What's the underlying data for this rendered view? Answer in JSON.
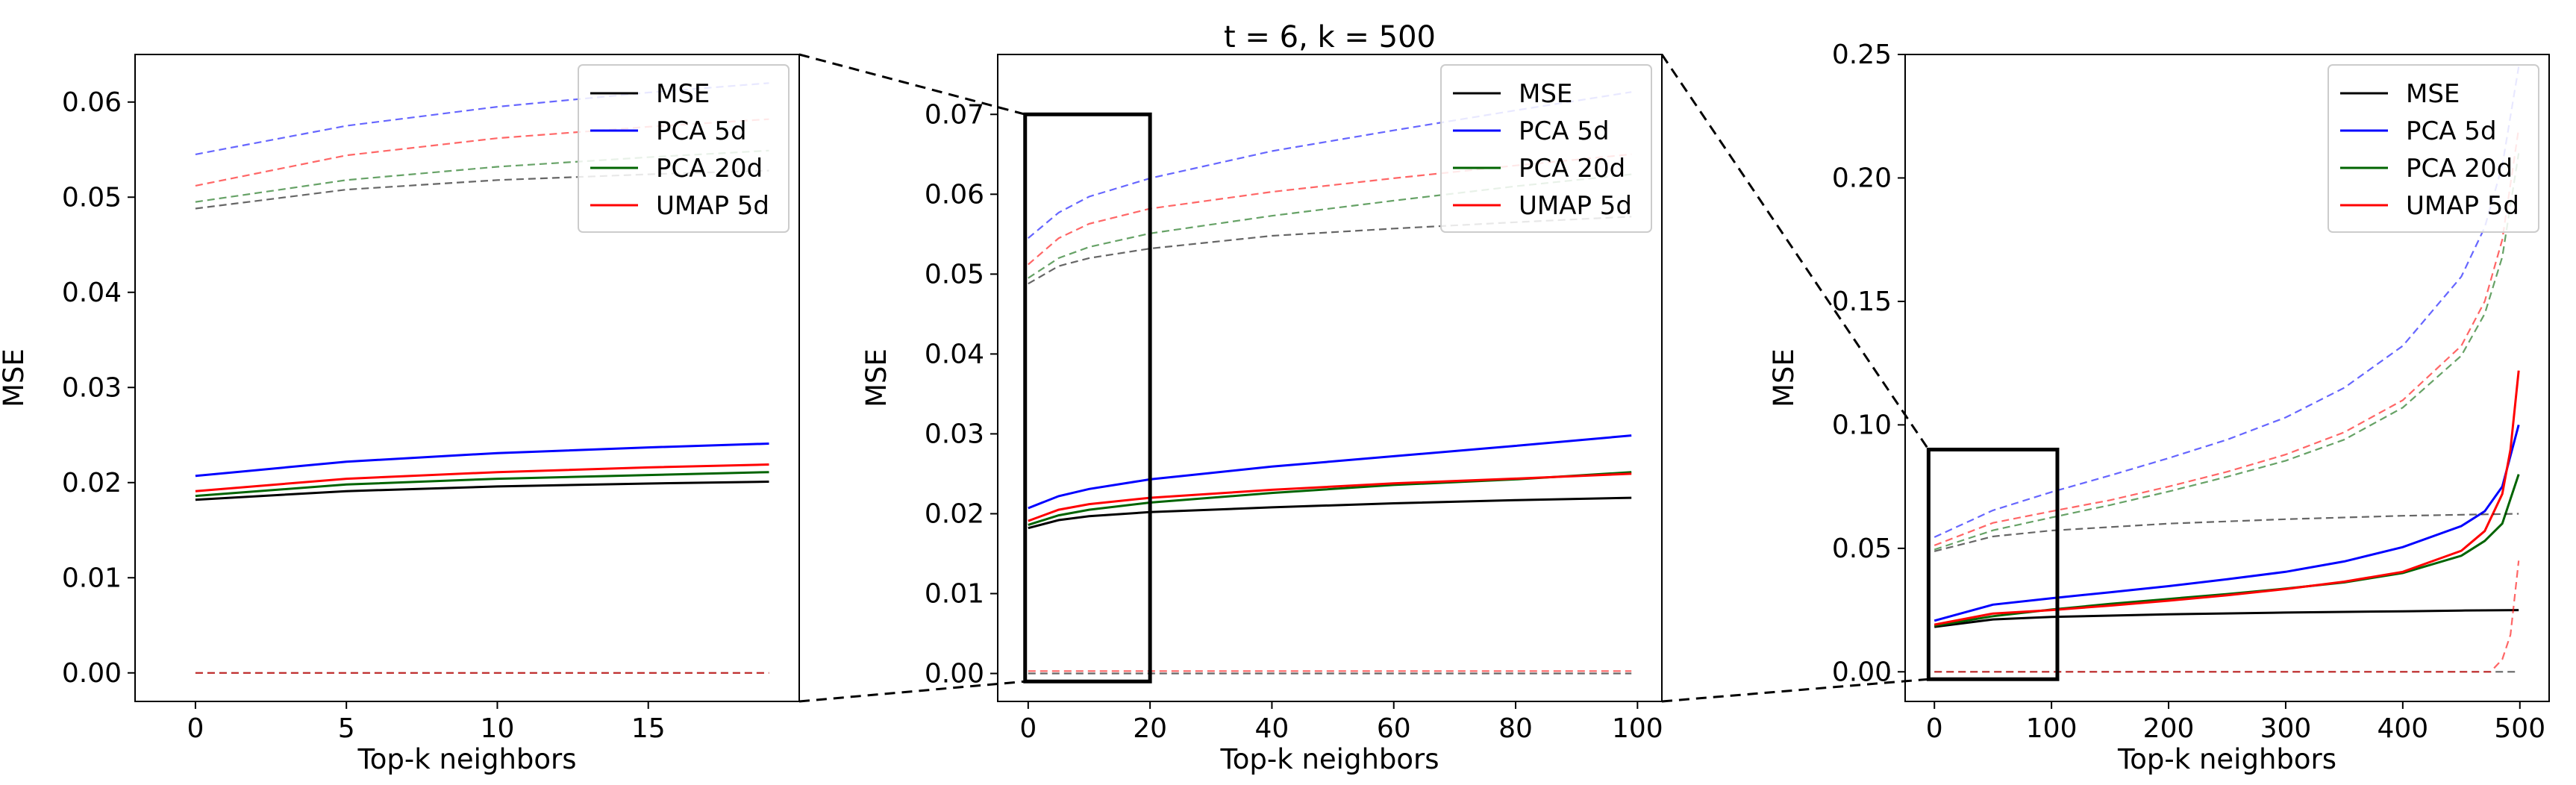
{
  "colors": {
    "MSE": "#000000",
    "PCA 5d": "#0000ff",
    "PCA 20d": "#006400",
    "UMAP 5d": "#ff0000",
    "background": "#ffffff"
  },
  "chart_data": [
    {
      "type": "line",
      "panel": "left",
      "title": "",
      "xlabel": "Top-k neighbors",
      "ylabel": "MSE",
      "xlim": [
        -2,
        20
      ],
      "ylim": [
        -0.003,
        0.065
      ],
      "xticks": [
        0,
        5,
        10,
        15
      ],
      "xtick_labels": [
        "0",
        "5",
        "10",
        "15"
      ],
      "yticks": [
        0.0,
        0.01,
        0.02,
        0.03,
        0.04,
        0.05,
        0.06
      ],
      "ytick_labels": [
        "0.00",
        "0.01",
        "0.02",
        "0.03",
        "0.04",
        "0.05",
        "0.06"
      ],
      "legend": [
        "MSE",
        "PCA 5d",
        "PCA 20d",
        "UMAP 5d"
      ],
      "legend_position": "top-right",
      "series": [
        {
          "name": "MSE",
          "style": "solid",
          "x": [
            0,
            5,
            10,
            15,
            19
          ],
          "values": [
            0.0182,
            0.0191,
            0.0196,
            0.0199,
            0.0201
          ]
        },
        {
          "name": "PCA 5d",
          "style": "solid",
          "x": [
            0,
            5,
            10,
            15,
            19
          ],
          "values": [
            0.0207,
            0.0222,
            0.0231,
            0.0237,
            0.0241
          ]
        },
        {
          "name": "PCA 20d",
          "style": "solid",
          "x": [
            0,
            5,
            10,
            15,
            19
          ],
          "values": [
            0.0186,
            0.0198,
            0.0204,
            0.0208,
            0.0211
          ]
        },
        {
          "name": "UMAP 5d",
          "style": "solid",
          "x": [
            0,
            5,
            10,
            15,
            19
          ],
          "values": [
            0.0191,
            0.0204,
            0.0211,
            0.0216,
            0.0219
          ]
        },
        {
          "name": "MSE",
          "style": "dashed",
          "x": [
            0,
            5,
            10,
            15,
            19
          ],
          "values": [
            0.0488,
            0.0508,
            0.0518,
            0.0524,
            0.0528
          ]
        },
        {
          "name": "PCA 5d",
          "style": "dashed",
          "x": [
            0,
            5,
            10,
            15,
            19
          ],
          "values": [
            0.0545,
            0.0575,
            0.0595,
            0.061,
            0.062
          ]
        },
        {
          "name": "PCA 20d",
          "style": "dashed",
          "x": [
            0,
            5,
            10,
            15,
            19
          ],
          "values": [
            0.0495,
            0.0518,
            0.0532,
            0.0542,
            0.0549
          ]
        },
        {
          "name": "UMAP 5d",
          "style": "dashed",
          "x": [
            0,
            5,
            10,
            15,
            19
          ],
          "values": [
            0.0512,
            0.0544,
            0.0562,
            0.0574,
            0.0582
          ]
        },
        {
          "name": "MSE",
          "style": "dashed",
          "x": [
            0,
            19
          ],
          "values": [
            0.0,
            0.0
          ]
        },
        {
          "name": "UMAP 5d",
          "style": "dashed",
          "x": [
            0,
            19
          ],
          "values": [
            0.0,
            0.0
          ]
        }
      ]
    },
    {
      "type": "line",
      "panel": "middle",
      "title": "t = 6, k = 500",
      "xlabel": "Top-k neighbors",
      "ylabel": "MSE",
      "xlim": [
        -5,
        104
      ],
      "ylim": [
        -0.0035,
        0.0775
      ],
      "xticks": [
        0,
        20,
        40,
        60,
        80,
        100
      ],
      "xtick_labels": [
        "0",
        "20",
        "40",
        "60",
        "80",
        "100"
      ],
      "yticks": [
        0.0,
        0.01,
        0.02,
        0.03,
        0.04,
        0.05,
        0.06,
        0.07
      ],
      "ytick_labels": [
        "0.00",
        "0.01",
        "0.02",
        "0.03",
        "0.04",
        "0.05",
        "0.06",
        "0.07"
      ],
      "legend": [
        "MSE",
        "PCA 5d",
        "PCA 20d",
        "UMAP 5d"
      ],
      "legend_position": "top-right",
      "series": [
        {
          "name": "MSE",
          "style": "solid",
          "x": [
            0,
            5,
            10,
            20,
            40,
            60,
            80,
            99
          ],
          "values": [
            0.0182,
            0.0192,
            0.0197,
            0.0202,
            0.0208,
            0.0213,
            0.0217,
            0.022
          ]
        },
        {
          "name": "PCA 5d",
          "style": "solid",
          "x": [
            0,
            5,
            10,
            20,
            40,
            60,
            80,
            99
          ],
          "values": [
            0.0207,
            0.0222,
            0.0231,
            0.0243,
            0.0259,
            0.0272,
            0.0285,
            0.0298
          ]
        },
        {
          "name": "PCA 20d",
          "style": "solid",
          "x": [
            0,
            5,
            10,
            20,
            40,
            60,
            80,
            99
          ],
          "values": [
            0.0186,
            0.0198,
            0.0205,
            0.0214,
            0.0226,
            0.0236,
            0.0243,
            0.0252
          ]
        },
        {
          "name": "UMAP 5d",
          "style": "solid",
          "x": [
            0,
            5,
            10,
            20,
            40,
            60,
            80,
            99
          ],
          "values": [
            0.0191,
            0.0205,
            0.0212,
            0.022,
            0.023,
            0.0238,
            0.0244,
            0.025
          ]
        },
        {
          "name": "MSE",
          "style": "dashed",
          "x": [
            0,
            5,
            10,
            20,
            40,
            60,
            80,
            99
          ],
          "values": [
            0.0488,
            0.051,
            0.052,
            0.0532,
            0.0548,
            0.0557,
            0.0565,
            0.0572
          ]
        },
        {
          "name": "PCA 5d",
          "style": "dashed",
          "x": [
            0,
            5,
            10,
            20,
            40,
            60,
            80,
            99
          ],
          "values": [
            0.0545,
            0.0577,
            0.0597,
            0.062,
            0.0654,
            0.068,
            0.0705,
            0.0728
          ]
        },
        {
          "name": "PCA 20d",
          "style": "dashed",
          "x": [
            0,
            5,
            10,
            20,
            40,
            60,
            80,
            99
          ],
          "values": [
            0.0495,
            0.052,
            0.0534,
            0.0551,
            0.0573,
            0.0592,
            0.061,
            0.0625
          ]
        },
        {
          "name": "UMAP 5d",
          "style": "dashed",
          "x": [
            0,
            5,
            10,
            20,
            40,
            60,
            80,
            99
          ],
          "values": [
            0.0512,
            0.0545,
            0.0563,
            0.0582,
            0.0603,
            0.062,
            0.0636,
            0.065
          ]
        },
        {
          "name": "MSE",
          "style": "dashed",
          "x": [
            0,
            99
          ],
          "values": [
            0.0,
            0.0
          ]
        },
        {
          "name": "UMAP 5d",
          "style": "dashed",
          "x": [
            0,
            99
          ],
          "values": [
            0.0003,
            0.0003
          ]
        }
      ],
      "annotations": [
        {
          "type": "zoom-box",
          "x_range": [
            -0.5,
            20
          ],
          "y_range": [
            -0.001,
            0.07
          ],
          "links_to": "left"
        }
      ]
    },
    {
      "type": "line",
      "panel": "right",
      "title": "",
      "xlabel": "Top-k neighbors",
      "ylabel": "MSE",
      "xlim": [
        -25,
        525
      ],
      "ylim": [
        -0.012,
        0.25
      ],
      "xticks": [
        0,
        100,
        200,
        300,
        400,
        500
      ],
      "xtick_labels": [
        "0",
        "100",
        "200",
        "300",
        "400",
        "500"
      ],
      "yticks": [
        0.0,
        0.05,
        0.1,
        0.15,
        0.2,
        0.25
      ],
      "ytick_labels": [
        "0.00",
        "0.05",
        "0.10",
        "0.15",
        "0.20",
        "0.25"
      ],
      "legend": [
        "MSE",
        "PCA 5d",
        "PCA 20d",
        "UMAP 5d"
      ],
      "legend_position": "top-right",
      "series": [
        {
          "name": "MSE",
          "style": "solid",
          "x": [
            0,
            50,
            100,
            200,
            300,
            400,
            450,
            499
          ],
          "values": [
            0.0182,
            0.0212,
            0.0222,
            0.0233,
            0.024,
            0.0245,
            0.0248,
            0.025
          ]
        },
        {
          "name": "PCA 5d",
          "style": "solid",
          "x": [
            0,
            50,
            100,
            150,
            200,
            250,
            300,
            350,
            400,
            450,
            470,
            485,
            499
          ],
          "values": [
            0.0207,
            0.0272,
            0.0298,
            0.0322,
            0.0347,
            0.0375,
            0.0405,
            0.0447,
            0.0505,
            0.059,
            0.065,
            0.075,
            0.1
          ]
        },
        {
          "name": "PCA 20d",
          "style": "solid",
          "x": [
            0,
            50,
            100,
            150,
            200,
            250,
            300,
            350,
            400,
            450,
            470,
            485,
            499
          ],
          "values": [
            0.0186,
            0.0225,
            0.0252,
            0.0275,
            0.0295,
            0.0315,
            0.0337,
            0.0362,
            0.04,
            0.047,
            0.053,
            0.06,
            0.08
          ]
        },
        {
          "name": "UMAP 5d",
          "style": "solid",
          "x": [
            0,
            50,
            100,
            150,
            200,
            250,
            300,
            350,
            400,
            450,
            470,
            485,
            492,
            499
          ],
          "values": [
            0.0191,
            0.0236,
            0.025,
            0.0268,
            0.0288,
            0.031,
            0.0335,
            0.0365,
            0.0405,
            0.049,
            0.057,
            0.072,
            0.09,
            0.122
          ]
        },
        {
          "name": "MSE",
          "style": "dashed",
          "x": [
            0,
            50,
            100,
            200,
            300,
            400,
            499
          ],
          "values": [
            0.0488,
            0.0548,
            0.0572,
            0.06,
            0.0618,
            0.0632,
            0.064
          ]
        },
        {
          "name": "PCA 5d",
          "style": "dashed",
          "x": [
            0,
            50,
            100,
            150,
            200,
            250,
            300,
            350,
            400,
            450,
            470,
            485,
            499
          ],
          "values": [
            0.0545,
            0.0654,
            0.0728,
            0.0795,
            0.0865,
            0.094,
            0.103,
            0.115,
            0.132,
            0.16,
            0.18,
            0.205,
            0.245
          ]
        },
        {
          "name": "PCA 20d",
          "style": "dashed",
          "x": [
            0,
            50,
            100,
            150,
            200,
            250,
            300,
            350,
            400,
            450,
            470,
            485,
            499
          ],
          "values": [
            0.0495,
            0.0573,
            0.0625,
            0.0675,
            0.073,
            0.079,
            0.0855,
            0.094,
            0.107,
            0.128,
            0.145,
            0.168,
            0.21
          ]
        },
        {
          "name": "UMAP 5d",
          "style": "dashed",
          "x": [
            0,
            50,
            100,
            150,
            200,
            250,
            300,
            350,
            400,
            450,
            470,
            485,
            499
          ],
          "values": [
            0.0512,
            0.0603,
            0.065,
            0.0695,
            0.075,
            0.081,
            0.088,
            0.097,
            0.11,
            0.132,
            0.15,
            0.175,
            0.22
          ]
        },
        {
          "name": "MSE",
          "style": "dashed",
          "x": [
            0,
            499
          ],
          "values": [
            0.0,
            0.0
          ]
        },
        {
          "name": "UMAP 5d",
          "style": "dashed",
          "x": [
            0,
            460,
            475,
            485,
            492,
            499
          ],
          "values": [
            0.0,
            0.0,
            0.0,
            0.005,
            0.015,
            0.045
          ]
        }
      ],
      "annotations": [
        {
          "type": "zoom-box",
          "x_range": [
            -5,
            105
          ],
          "y_range": [
            -0.003,
            0.09
          ],
          "links_to": "middle"
        }
      ]
    }
  ]
}
